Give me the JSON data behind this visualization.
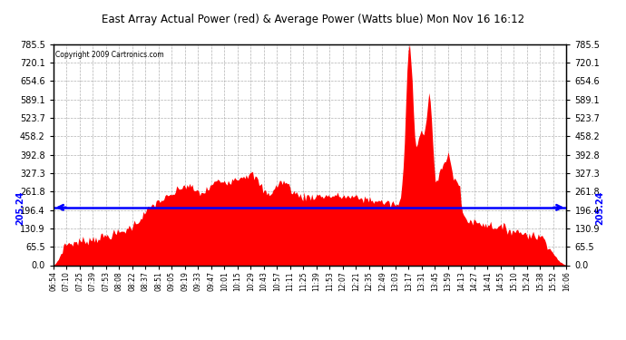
{
  "title": "East Array Actual Power (red) & Average Power (Watts blue) Mon Nov 16 16:12",
  "copyright": "Copyright 2009 Cartronics.com",
  "avg_power": 205.24,
  "ymin": 0.0,
  "ymax": 785.5,
  "yticks": [
    0.0,
    65.5,
    130.9,
    196.4,
    261.8,
    327.3,
    392.8,
    458.2,
    523.7,
    589.1,
    654.6,
    720.1,
    785.5
  ],
  "fill_color": "#FF0000",
  "line_color": "#0000FF",
  "background_color": "#FFFFFF",
  "grid_color": "#AAAAAA",
  "xtick_labels": [
    "06:54",
    "07:10",
    "07:25",
    "07:39",
    "07:53",
    "08:08",
    "08:22",
    "08:37",
    "08:51",
    "09:05",
    "09:19",
    "09:33",
    "09:47",
    "10:01",
    "10:15",
    "10:29",
    "10:43",
    "10:57",
    "11:11",
    "11:25",
    "11:39",
    "11:53",
    "12:07",
    "12:21",
    "12:35",
    "12:49",
    "13:03",
    "13:17",
    "13:31",
    "13:45",
    "13:59",
    "14:13",
    "14:27",
    "14:41",
    "14:55",
    "15:10",
    "15:24",
    "15:38",
    "15:52",
    "16:06"
  ]
}
